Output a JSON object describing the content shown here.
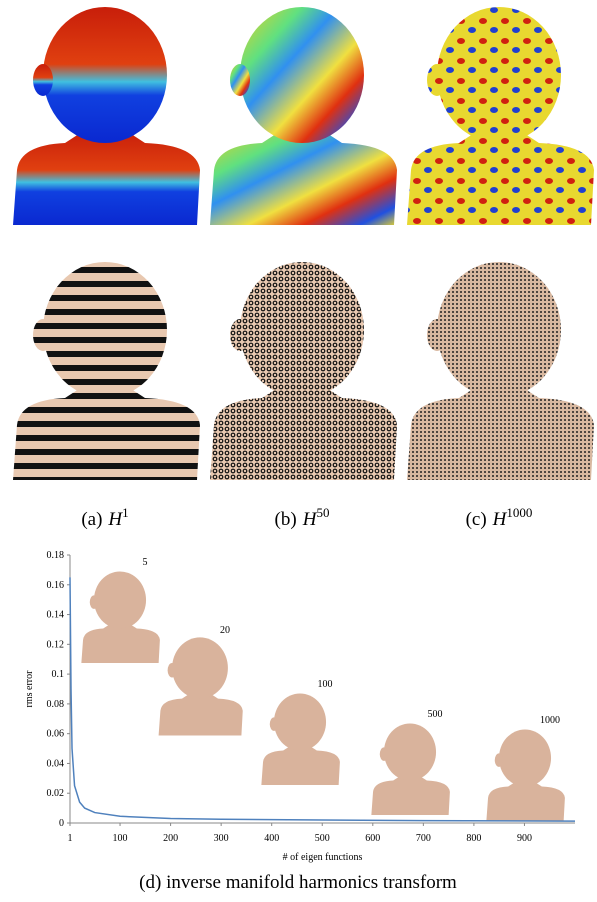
{
  "panels": [
    {
      "label": "(a)",
      "symbol": "H",
      "superscript": "1"
    },
    {
      "label": "(b)",
      "symbol": "H",
      "superscript": "50"
    },
    {
      "label": "(c)",
      "symbol": "H",
      "superscript": "1000"
    }
  ],
  "chart_data": {
    "type": "line",
    "caption": "(d) inverse manifold harmonics transform",
    "x_label": "# of eigen functions",
    "y_label": "rms error",
    "x": [
      1,
      3,
      5,
      10,
      20,
      30,
      50,
      100,
      200,
      300,
      500,
      700,
      1000
    ],
    "series": [
      {
        "name": "rms error",
        "color": "#4f81bd",
        "values": [
          0.165,
          0.09,
          0.05,
          0.025,
          0.014,
          0.01,
          0.007,
          0.0045,
          0.003,
          0.0025,
          0.002,
          0.0016,
          0.0013
        ]
      }
    ],
    "xlim": [
      1,
      1000
    ],
    "xticks": [
      1,
      100,
      200,
      300,
      400,
      500,
      600,
      700,
      800,
      900
    ],
    "ylim": [
      0,
      0.18
    ],
    "yticks": [
      0,
      0.02,
      0.04,
      0.06,
      0.08,
      0.1,
      0.12,
      0.14,
      0.16,
      0.18
    ],
    "grid": false,
    "annotations": [
      "5",
      "20",
      "100",
      "500",
      "1000"
    ]
  }
}
